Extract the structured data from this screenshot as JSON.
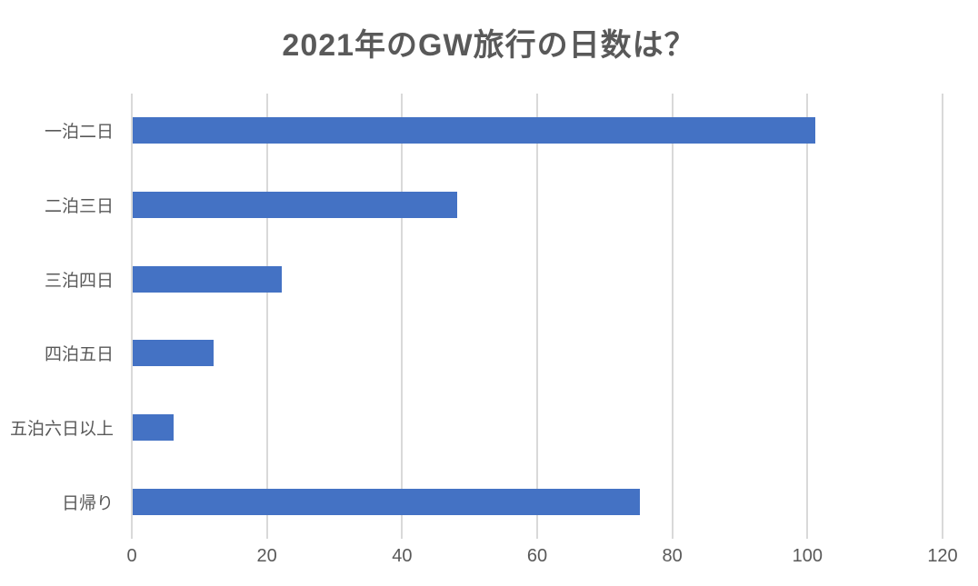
{
  "chart_data": {
    "type": "bar",
    "orientation": "horizontal",
    "title": "2021年のGW旅行の日数は？",
    "categories": [
      "一泊二日",
      "二泊三日",
      "三泊四日",
      "四泊五日",
      "五泊六日以上",
      "日帰り"
    ],
    "values": [
      101,
      48,
      22,
      12,
      6,
      75
    ],
    "xlabel": "",
    "ylabel": "",
    "xlim": [
      0,
      120
    ],
    "xticks": [
      0,
      20,
      40,
      60,
      80,
      100,
      120
    ],
    "grid": true,
    "legend": "none",
    "data_labels": "none",
    "bar_color": "#4472C4",
    "gridline_color": "#D9D9D9",
    "text_color": "#595959",
    "title_color": "#595959",
    "background_color": "#FFFFFF"
  }
}
